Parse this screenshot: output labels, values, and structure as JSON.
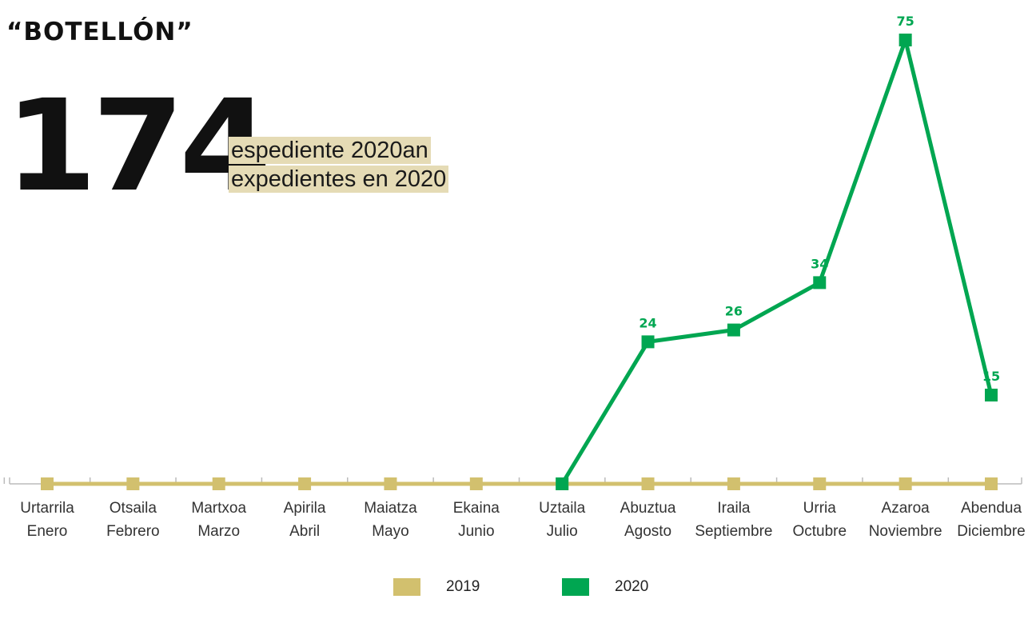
{
  "header": {
    "title": "“BOTELLÓN”",
    "total": "174",
    "subtitle_eu": "espediente 2020an",
    "subtitle_es": "expedientes en 2020"
  },
  "colors": {
    "series_2019": "#d2c06e",
    "series_2020": "#00a651",
    "highlight": "#e5dbb5",
    "axis": "#bbbbbb"
  },
  "chart_data": {
    "type": "line",
    "categories": [
      [
        "Urtarrila",
        "Enero"
      ],
      [
        "Otsaila",
        "Febrero"
      ],
      [
        "Martxoa",
        "Marzo"
      ],
      [
        "Apirila",
        "Abril"
      ],
      [
        "Maiatza",
        "Mayo"
      ],
      [
        "Ekaina",
        "Junio"
      ],
      [
        "Uztaila",
        "Julio"
      ],
      [
        "Abuztua",
        "Agosto"
      ],
      [
        "Iraila",
        "Septiembre"
      ],
      [
        "Urria",
        "Octubre"
      ],
      [
        "Azaroa",
        "Noviembre"
      ],
      [
        "Abendua",
        "Diciembre"
      ]
    ],
    "series": [
      {
        "name": "2019",
        "values": [
          0,
          0,
          0,
          0,
          0,
          0,
          0,
          0,
          0,
          0,
          0,
          0
        ],
        "color": "#d2c06e"
      },
      {
        "name": "2020",
        "values": [
          null,
          null,
          null,
          null,
          null,
          null,
          0,
          24,
          26,
          34,
          75,
          15
        ],
        "color": "#00a651",
        "labels": [
          "",
          "",
          "",
          "",
          "",
          "",
          "",
          "24",
          "26",
          "34",
          "75",
          "15"
        ]
      }
    ],
    "ylim": [
      0,
      75
    ],
    "grid": false,
    "legend_position": "bottom-center"
  }
}
